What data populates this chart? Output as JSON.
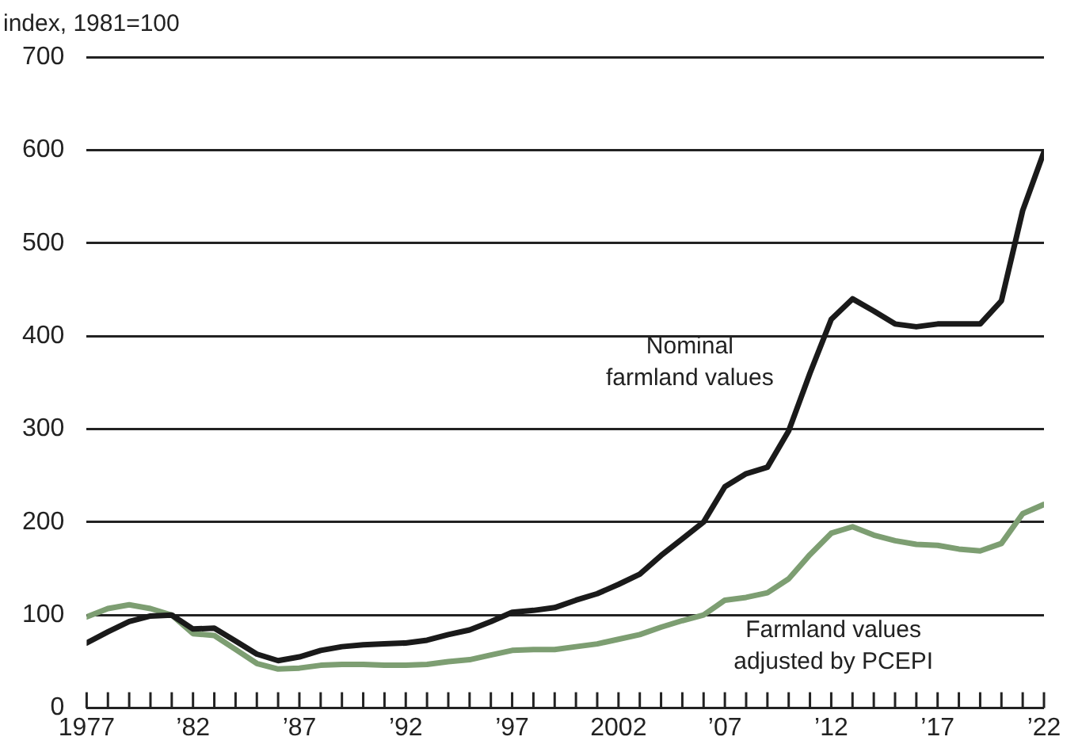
{
  "chart_data": {
    "type": "line",
    "ylabel": "index, 1981=100",
    "x": [
      1977,
      1978,
      1979,
      1980,
      1981,
      1982,
      1983,
      1984,
      1985,
      1986,
      1987,
      1988,
      1989,
      1990,
      1991,
      1992,
      1993,
      1994,
      1995,
      1996,
      1997,
      1998,
      1999,
      2000,
      2001,
      2002,
      2003,
      2004,
      2005,
      2006,
      2007,
      2008,
      2009,
      2010,
      2011,
      2012,
      2013,
      2014,
      2015,
      2016,
      2017,
      2018,
      2019,
      2020,
      2021,
      2022
    ],
    "series": [
      {
        "name": "Nominal farmland values",
        "color": "#1a1a1a",
        "values": [
          70,
          82,
          93,
          99,
          100,
          85,
          86,
          72,
          58,
          51,
          55,
          62,
          66,
          68,
          69,
          70,
          73,
          79,
          84,
          93,
          103,
          105,
          108,
          116,
          123,
          133,
          144,
          164,
          182,
          200,
          238,
          252,
          259,
          298,
          360,
          418,
          440,
          427,
          413,
          410,
          413,
          413,
          413,
          438,
          535,
          598
        ]
      },
      {
        "name": "Farmland values adjusted by PCEPI",
        "color": "#7d9e72",
        "values": [
          98,
          107,
          111,
          107,
          100,
          80,
          78,
          63,
          48,
          42,
          43,
          46,
          47,
          47,
          46,
          46,
          47,
          50,
          52,
          57,
          62,
          63,
          63,
          66,
          69,
          74,
          79,
          87,
          94,
          100,
          116,
          119,
          124,
          139,
          165,
          188,
          195,
          186,
          180,
          176,
          175,
          171,
          169,
          177,
          209,
          219
        ]
      }
    ],
    "xlim": [
      1977,
      2022
    ],
    "xticks": [
      {
        "value": 1977,
        "label": "1977"
      },
      {
        "value": 1978,
        "label": null
      },
      {
        "value": 1979,
        "label": null
      },
      {
        "value": 1980,
        "label": null
      },
      {
        "value": 1981,
        "label": null
      },
      {
        "value": 1982,
        "label": "’82"
      },
      {
        "value": 1983,
        "label": null
      },
      {
        "value": 1984,
        "label": null
      },
      {
        "value": 1985,
        "label": null
      },
      {
        "value": 1986,
        "label": null
      },
      {
        "value": 1987,
        "label": "’87"
      },
      {
        "value": 1988,
        "label": null
      },
      {
        "value": 1989,
        "label": null
      },
      {
        "value": 1990,
        "label": null
      },
      {
        "value": 1991,
        "label": null
      },
      {
        "value": 1992,
        "label": "’92"
      },
      {
        "value": 1993,
        "label": null
      },
      {
        "value": 1994,
        "label": null
      },
      {
        "value": 1995,
        "label": null
      },
      {
        "value": 1996,
        "label": null
      },
      {
        "value": 1997,
        "label": "’97"
      },
      {
        "value": 1998,
        "label": null
      },
      {
        "value": 1999,
        "label": null
      },
      {
        "value": 2000,
        "label": null
      },
      {
        "value": 2001,
        "label": null
      },
      2002,
      {
        "value": 2003,
        "label": null
      },
      {
        "value": 2004,
        "label": null
      },
      {
        "value": 2005,
        "label": null
      },
      {
        "value": 2006,
        "label": null
      },
      {
        "value": 2007,
        "label": "’07"
      },
      {
        "value": 2008,
        "label": null
      },
      {
        "value": 2009,
        "label": null
      },
      {
        "value": 2010,
        "label": null
      },
      {
        "value": 2011,
        "label": null
      },
      {
        "value": 2012,
        "label": "’12"
      },
      {
        "value": 2013,
        "label": null
      },
      {
        "value": 2014,
        "label": null
      },
      {
        "value": 2015,
        "label": null
      },
      {
        "value": 2016,
        "label": null
      },
      {
        "value": 2017,
        "label": "’17"
      },
      {
        "value": 2018,
        "label": null
      },
      {
        "value": 2019,
        "label": null
      },
      {
        "value": 2020,
        "label": null
      },
      {
        "value": 2021,
        "label": null
      },
      {
        "value": 2022,
        "label": "’22"
      }
    ],
    "ylim": [
      0,
      700
    ],
    "yticks": [
      0,
      100,
      200,
      300,
      400,
      500,
      600,
      700
    ],
    "grid": "y",
    "legend": false,
    "marker": "none",
    "line_style": "solid"
  }
}
